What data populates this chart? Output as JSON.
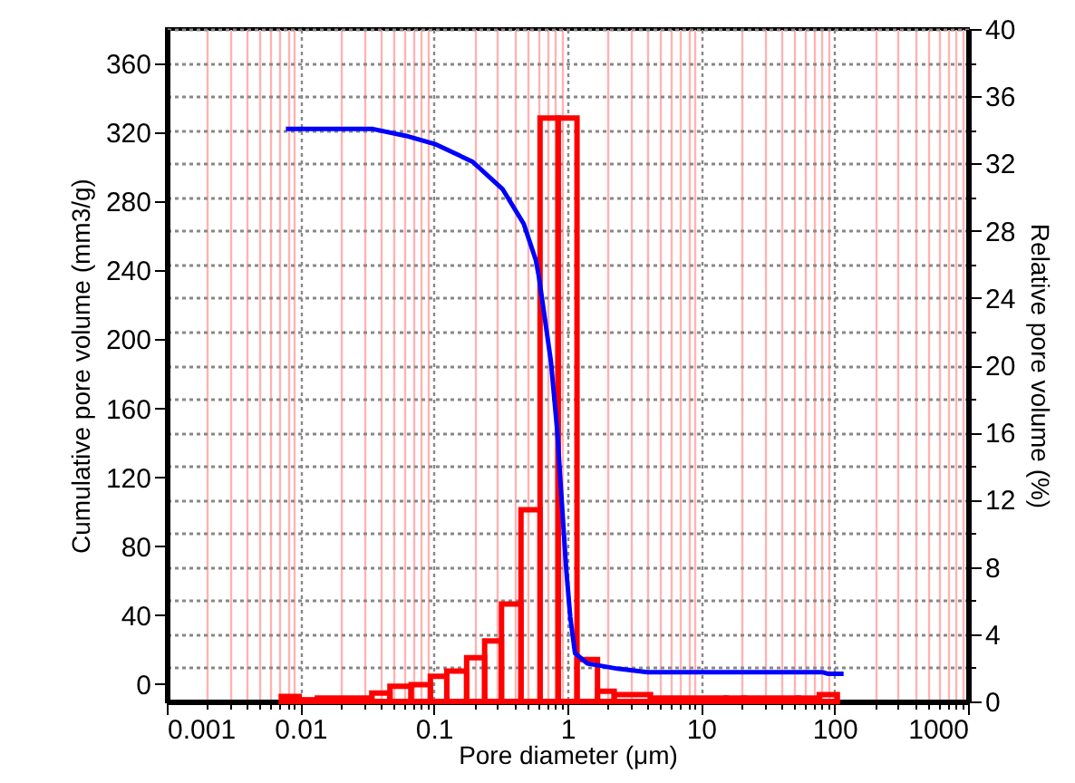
{
  "chart_data": {
    "type": "histogram",
    "xlabel": "Pore diameter (μm)",
    "ylabel": "Cumulative pore volume (mm3/g)",
    "y2label": "Relative pore volume (%)",
    "log": "x",
    "grid": true,
    "marker": "none",
    "xlim": [
      0.001,
      1000
    ],
    "xticks": [
      0.001,
      {
        "value": 0.002,
        "label": null
      },
      {
        "value": 0.003,
        "label": null
      },
      {
        "value": 0.004,
        "label": null
      },
      {
        "value": 0.005,
        "label": null
      },
      {
        "value": 0.006,
        "label": null
      },
      {
        "value": 0.007,
        "label": null
      },
      {
        "value": 0.008,
        "label": null
      },
      {
        "value": 0.009,
        "label": null
      },
      0.01,
      {
        "value": 0.02,
        "label": null
      },
      {
        "value": 0.03,
        "label": null
      },
      {
        "value": 0.04,
        "label": null
      },
      {
        "value": 0.05,
        "label": null
      },
      {
        "value": 0.06,
        "label": null
      },
      {
        "value": 0.07,
        "label": null
      },
      {
        "value": 0.08,
        "label": null
      },
      {
        "value": 0.09,
        "label": null
      },
      0.1,
      {
        "value": 0.2,
        "label": null
      },
      {
        "value": 0.3,
        "label": null
      },
      {
        "value": 0.4,
        "label": null
      },
      {
        "value": 0.5,
        "label": null
      },
      {
        "value": 0.6,
        "label": null
      },
      {
        "value": 0.7,
        "label": null
      },
      {
        "value": 0.8,
        "label": null
      },
      {
        "value": 0.9,
        "label": null
      },
      1,
      {
        "value": 2,
        "label": null
      },
      {
        "value": 3,
        "label": null
      },
      {
        "value": 4,
        "label": null
      },
      {
        "value": 5,
        "label": null
      },
      {
        "value": 6,
        "label": null
      },
      {
        "value": 7,
        "label": null
      },
      {
        "value": 8,
        "label": null
      },
      {
        "value": 9,
        "label": null
      },
      10,
      {
        "value": 20,
        "label": null
      },
      {
        "value": 30,
        "label": null
      },
      {
        "value": 40,
        "label": null
      },
      {
        "value": 50,
        "label": null
      },
      {
        "value": 60,
        "label": null
      },
      {
        "value": 70,
        "label": null
      },
      {
        "value": 80,
        "label": null
      },
      {
        "value": 90,
        "label": null
      },
      100,
      {
        "value": 200,
        "label": null
      },
      {
        "value": 300,
        "label": null
      },
      {
        "value": 400,
        "label": null
      },
      {
        "value": 500,
        "label": null
      },
      {
        "value": 600,
        "label": null
      },
      {
        "value": 700,
        "label": null
      },
      {
        "value": 800,
        "label": null
      },
      {
        "value": 900,
        "label": null
      },
      1000
    ],
    "ylim": [
      -10,
      380
    ],
    "yticks": [
      0,
      40,
      80,
      120,
      160,
      200,
      240,
      280,
      320,
      360
    ],
    "y2lim": [
      0,
      40
    ],
    "y2ticks": [
      0,
      {
        "value": 2,
        "label": null
      },
      4,
      {
        "value": 6,
        "label": null
      },
      8,
      {
        "value": 10,
        "label": null
      },
      12,
      {
        "value": 14,
        "label": null
      },
      16,
      {
        "value": 18,
        "label": null
      },
      20,
      {
        "value": 22,
        "label": null
      },
      24,
      {
        "value": 26,
        "label": null
      },
      28,
      {
        "value": 30,
        "label": null
      },
      32,
      {
        "value": 34,
        "label": null
      },
      36,
      {
        "value": 38,
        "label": null
      },
      40
    ],
    "series": [
      {
        "type": "line",
        "color": "#0000ff",
        "x": [
          0.0078,
          0.035,
          0.062,
          0.104,
          0.195,
          0.328,
          0.471,
          0.58,
          0.61,
          0.753,
          0.837,
          0.9,
          0.977,
          1.05,
          1.14,
          1.41,
          2.37,
          3.98,
          81,
          90,
          117
        ],
        "values": [
          322,
          322,
          318,
          313,
          303,
          287,
          267,
          246,
          237,
          187,
          148,
          110,
          68,
          39,
          18,
          12,
          9,
          7,
          7,
          6,
          6
        ]
      },
      {
        "color": "#ff0000",
        "axis": "y2",
        "bins": [
          0.0072,
          0.0098,
          0.0134,
          0.0343,
          0.0469,
          0.0675,
          0.0942,
          0.125,
          0.176,
          0.24,
          0.321,
          0.449,
          0.624,
          0.853,
          1.18,
          1.68,
          2.24,
          4.19,
          15.4,
          21,
          53.6,
          77,
          105
        ],
        "values": [
          0.3,
          0.1,
          0.2,
          0.5,
          0.9,
          1.0,
          1.5,
          1.8,
          2.6,
          3.6,
          5.8,
          11.4,
          34.7,
          34.7,
          2.5,
          0.6,
          0.4,
          0.2,
          0.2,
          0.2,
          0.2,
          0.4
        ]
      }
    ]
  }
}
